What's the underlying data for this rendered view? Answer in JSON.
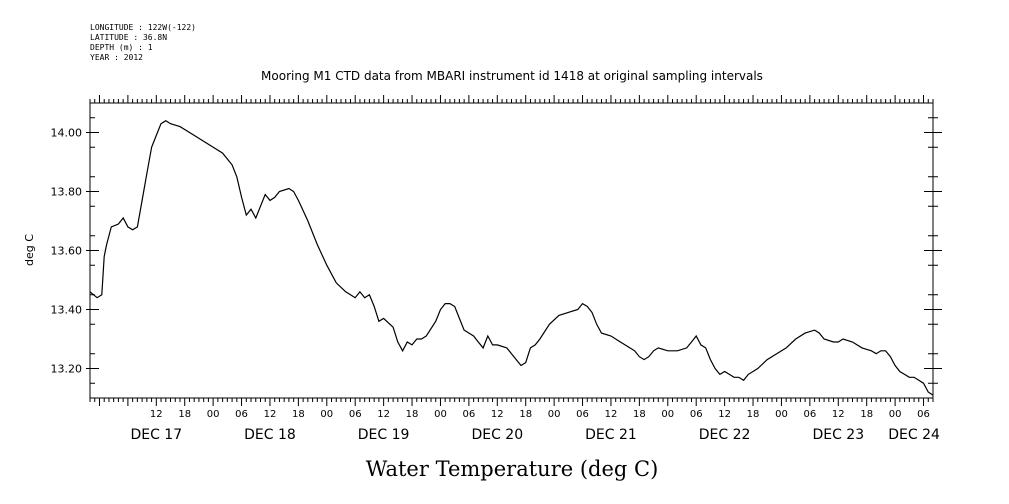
{
  "metadata": {
    "longitude": "LONGITUDE : 122W(-122)",
    "latitude": "LATITUDE : 36.8N",
    "depth": "DEPTH (m) : 1",
    "year": "YEAR : 2012"
  },
  "chart_data": {
    "type": "line",
    "title": "Mooring M1 CTD data from MBARI instrument id 1418 at original sampling intervals",
    "xlabel": "Water Temperature (deg C)",
    "ylabel": "deg C",
    "x_unit": "hours since DEC 17 00:00",
    "xlim": [
      -8,
      170
    ],
    "ylim": [
      13.1,
      14.1
    ],
    "y_ticks": [
      13.2,
      13.4,
      13.6,
      13.8,
      14.0
    ],
    "y_tick_labels": [
      "13.20",
      "13.40",
      "13.60",
      "13.80",
      "14.00"
    ],
    "hour_ticks": [
      6,
      12,
      18,
      24,
      30,
      36,
      42,
      48,
      54,
      60,
      66,
      72,
      78,
      84,
      90,
      96,
      102,
      108,
      114,
      120,
      126,
      132,
      138,
      144,
      150,
      156,
      162,
      168
    ],
    "hour_tick_labels": [
      "12",
      "18",
      "00",
      "06",
      "12",
      "18",
      "00",
      "06",
      "12",
      "18",
      "00",
      "06",
      "12",
      "18",
      "00",
      "06",
      "12",
      "18",
      "00",
      "06",
      "12",
      "18",
      "00",
      "06",
      "12",
      "18",
      "00",
      "06"
    ],
    "day_labels": [
      {
        "hour": 6,
        "label": "DEC 17"
      },
      {
        "hour": 30,
        "label": "DEC 18"
      },
      {
        "hour": 54,
        "label": "DEC 19"
      },
      {
        "hour": 78,
        "label": "DEC 20"
      },
      {
        "hour": 102,
        "label": "DEC 21"
      },
      {
        "hour": 126,
        "label": "DEC 22"
      },
      {
        "hour": 150,
        "label": "DEC 23"
      },
      {
        "hour": 166,
        "label": "DEC 24"
      }
    ],
    "grid": false,
    "series": [
      {
        "points": [
          [
            -8,
            13.46
          ],
          [
            -6.5,
            13.44
          ],
          [
            -5.5,
            13.45
          ],
          [
            -5,
            13.58
          ],
          [
            -4.5,
            13.62
          ],
          [
            -3.5,
            13.68
          ],
          [
            -2,
            13.69
          ],
          [
            -1,
            13.71
          ],
          [
            0,
            13.68
          ],
          [
            1,
            13.67
          ],
          [
            2,
            13.68
          ],
          [
            3,
            13.77
          ],
          [
            4,
            13.86
          ],
          [
            5,
            13.95
          ],
          [
            6,
            13.99
          ],
          [
            7,
            14.03
          ],
          [
            8,
            14.04
          ],
          [
            9,
            14.03
          ],
          [
            11,
            14.02
          ],
          [
            14,
            13.99
          ],
          [
            17,
            13.96
          ],
          [
            20,
            13.93
          ],
          [
            22,
            13.89
          ],
          [
            23,
            13.85
          ],
          [
            24,
            13.78
          ],
          [
            25,
            13.72
          ],
          [
            26,
            13.74
          ],
          [
            27,
            13.71
          ],
          [
            28,
            13.75
          ],
          [
            29,
            13.79
          ],
          [
            30,
            13.77
          ],
          [
            31,
            13.78
          ],
          [
            32,
            13.8
          ],
          [
            34,
            13.81
          ],
          [
            35,
            13.8
          ],
          [
            36,
            13.77
          ],
          [
            38,
            13.7
          ],
          [
            40,
            13.62
          ],
          [
            42,
            13.55
          ],
          [
            44,
            13.49
          ],
          [
            46,
            13.46
          ],
          [
            48,
            13.44
          ],
          [
            49,
            13.46
          ],
          [
            50,
            13.44
          ],
          [
            51,
            13.45
          ],
          [
            52,
            13.41
          ],
          [
            53,
            13.36
          ],
          [
            54,
            13.37
          ],
          [
            56,
            13.34
          ],
          [
            57,
            13.29
          ],
          [
            58,
            13.26
          ],
          [
            59,
            13.29
          ],
          [
            60,
            13.28
          ],
          [
            61,
            13.3
          ],
          [
            62,
            13.3
          ],
          [
            63,
            13.31
          ],
          [
            65,
            13.36
          ],
          [
            66,
            13.4
          ],
          [
            67,
            13.42
          ],
          [
            68,
            13.42
          ],
          [
            69,
            13.41
          ],
          [
            70,
            13.37
          ],
          [
            71,
            13.33
          ],
          [
            73,
            13.31
          ],
          [
            74,
            13.29
          ],
          [
            75,
            13.27
          ],
          [
            76,
            13.31
          ],
          [
            77,
            13.28
          ],
          [
            78,
            13.28
          ],
          [
            80,
            13.27
          ],
          [
            81,
            13.25
          ],
          [
            82,
            13.23
          ],
          [
            83,
            13.21
          ],
          [
            84,
            13.22
          ],
          [
            85,
            13.27
          ],
          [
            86,
            13.28
          ],
          [
            87,
            13.3
          ],
          [
            89,
            13.35
          ],
          [
            91,
            13.38
          ],
          [
            93,
            13.39
          ],
          [
            95,
            13.4
          ],
          [
            96,
            13.42
          ],
          [
            97,
            13.41
          ],
          [
            98,
            13.39
          ],
          [
            99,
            13.35
          ],
          [
            100,
            13.32
          ],
          [
            102,
            13.31
          ],
          [
            104,
            13.29
          ],
          [
            106,
            13.27
          ],
          [
            107,
            13.26
          ],
          [
            108,
            13.24
          ],
          [
            109,
            13.23
          ],
          [
            110,
            13.24
          ],
          [
            111,
            13.26
          ],
          [
            112,
            13.27
          ],
          [
            114,
            13.26
          ],
          [
            116,
            13.26
          ],
          [
            118,
            13.27
          ],
          [
            119,
            13.29
          ],
          [
            120,
            13.31
          ],
          [
            121,
            13.28
          ],
          [
            122,
            13.27
          ],
          [
            123,
            13.23
          ],
          [
            124,
            13.2
          ],
          [
            125,
            13.18
          ],
          [
            126,
            13.19
          ],
          [
            127,
            13.18
          ],
          [
            128,
            13.17
          ],
          [
            129,
            13.17
          ],
          [
            130,
            13.16
          ],
          [
            131,
            13.18
          ],
          [
            133,
            13.2
          ],
          [
            135,
            13.23
          ],
          [
            137,
            13.25
          ],
          [
            139,
            13.27
          ],
          [
            141,
            13.3
          ],
          [
            143,
            13.32
          ],
          [
            145,
            13.33
          ],
          [
            146,
            13.32
          ],
          [
            147,
            13.3
          ],
          [
            149,
            13.29
          ],
          [
            150,
            13.29
          ],
          [
            151,
            13.3
          ],
          [
            153,
            13.29
          ],
          [
            155,
            13.27
          ],
          [
            157,
            13.26
          ],
          [
            158,
            13.25
          ],
          [
            159,
            13.26
          ],
          [
            160,
            13.26
          ],
          [
            161,
            13.24
          ],
          [
            162,
            13.21
          ],
          [
            163,
            13.19
          ],
          [
            164,
            13.18
          ],
          [
            165,
            13.17
          ],
          [
            166,
            13.17
          ],
          [
            167,
            13.16
          ],
          [
            168,
            13.15
          ],
          [
            169,
            13.12
          ],
          [
            170,
            13.11
          ]
        ]
      }
    ]
  }
}
